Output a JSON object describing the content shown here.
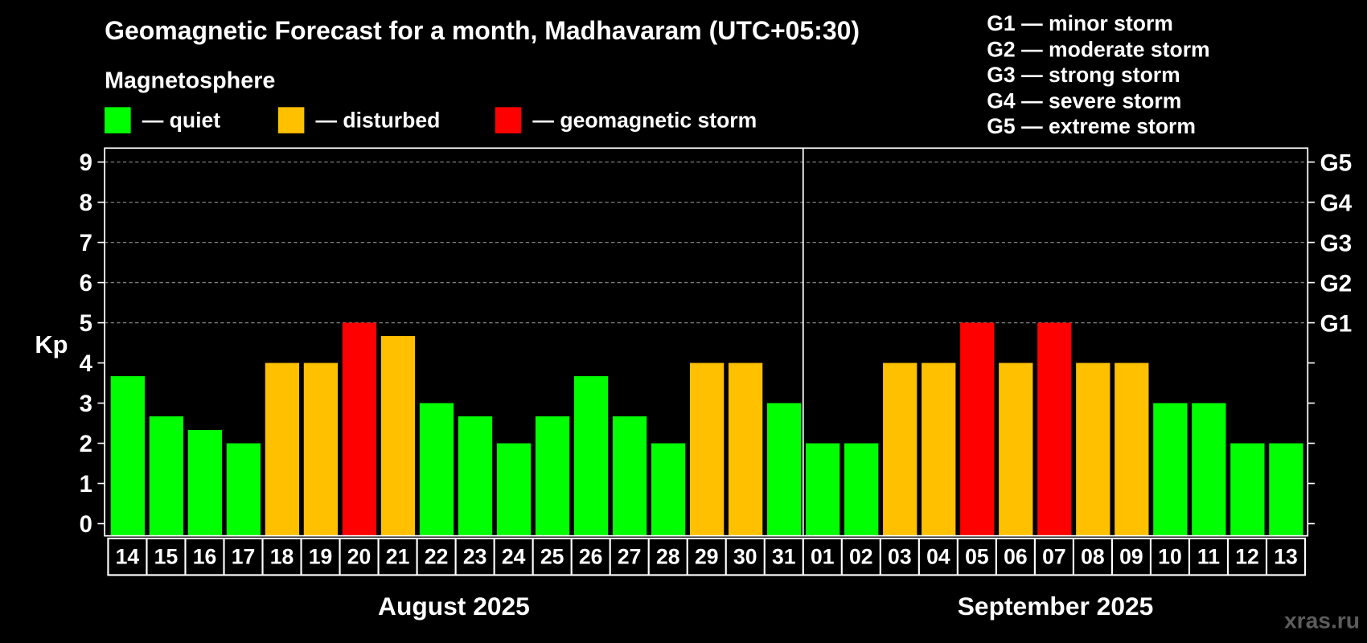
{
  "chart_data": {
    "type": "bar",
    "title": "Geomagnetic Forecast for a month, Madhavaram (UTC+05:30)",
    "legend_heading": "Magnetosphere",
    "legend": [
      {
        "label": "— quiet",
        "color": "#00ff00"
      },
      {
        "label": "— disturbed",
        "color": "#ffc000"
      },
      {
        "label": "— geomagnetic storm",
        "color": "#ff0000"
      }
    ],
    "storm_scale": [
      "G1 — minor storm",
      "G2 — moderate storm",
      "G3 — strong storm",
      "G4 — severe storm",
      "G5 — extreme storm"
    ],
    "ylabel": "Kp",
    "ylim": [
      0,
      9
    ],
    "yticks": [
      0,
      1,
      2,
      3,
      4,
      5,
      6,
      7,
      8,
      9
    ],
    "y2_labels": [
      {
        "value": 5,
        "label": "G1"
      },
      {
        "value": 6,
        "label": "G2"
      },
      {
        "value": 7,
        "label": "G3"
      },
      {
        "value": 8,
        "label": "G4"
      },
      {
        "value": 9,
        "label": "G5"
      }
    ],
    "grid_values": [
      5,
      6,
      7,
      8,
      9
    ],
    "categories": [
      "14",
      "15",
      "16",
      "17",
      "18",
      "19",
      "20",
      "21",
      "22",
      "23",
      "24",
      "25",
      "26",
      "27",
      "28",
      "29",
      "30",
      "31",
      "01",
      "02",
      "03",
      "04",
      "05",
      "06",
      "07",
      "08",
      "09",
      "10",
      "11",
      "12",
      "13"
    ],
    "values": [
      3.67,
      2.67,
      2.33,
      2,
      4,
      4,
      5,
      4.67,
      3,
      2.67,
      2,
      2.67,
      3.67,
      2.67,
      2,
      4,
      4,
      3,
      2,
      2,
      4,
      4,
      5,
      4,
      5,
      4,
      4,
      3,
      3,
      2,
      2
    ],
    "legend_index": [
      0,
      0,
      0,
      0,
      1,
      1,
      2,
      1,
      0,
      0,
      0,
      0,
      0,
      0,
      0,
      1,
      1,
      0,
      0,
      0,
      1,
      1,
      2,
      1,
      2,
      1,
      1,
      0,
      0,
      0,
      0
    ],
    "months": [
      {
        "label": "August 2025",
        "days": 18
      },
      {
        "label": "September 2025",
        "days": 13
      }
    ]
  },
  "watermark": "xras.ru",
  "colors": {
    "background": "#000000",
    "text": "#ffffff",
    "grid": "#7f7f7f",
    "watermark": "#5c5c5c"
  }
}
